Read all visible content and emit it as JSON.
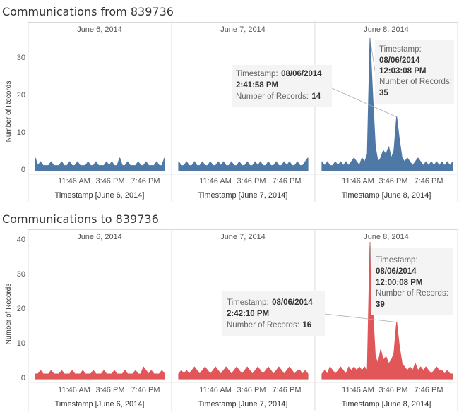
{
  "chart_data": [
    {
      "type": "line",
      "title": "Communications from 839736",
      "ylabel": "Number of Records",
      "ylim": [
        0,
        38
      ],
      "yticks": [
        0,
        10,
        20,
        30
      ],
      "color": "#4e79a7",
      "panels": [
        {
          "label": "June 6, 2014",
          "xlabel": "Timestamp [June 6, 2014]",
          "xticks": [
            "11:46 AM",
            "3:46 PM",
            "7:46 PM"
          ],
          "series": [
            3,
            1,
            2,
            1,
            1,
            1,
            2,
            1,
            1,
            1,
            2,
            1,
            1,
            2,
            1,
            1,
            2,
            1,
            1,
            1,
            2,
            1,
            1,
            2,
            1,
            1,
            1,
            2,
            1,
            2,
            1,
            1,
            3,
            1,
            1,
            2,
            1,
            1,
            1,
            2,
            1,
            1,
            2,
            1,
            1,
            1,
            2,
            1,
            1,
            3
          ]
        },
        {
          "label": "June 7, 2014",
          "xlabel": "Timestamp [June 7, 2014]",
          "xticks": [
            "11:46 AM",
            "3:46 PM",
            "7:46 PM"
          ],
          "series": [
            2,
            1,
            1,
            2,
            1,
            1,
            2,
            1,
            1,
            2,
            1,
            1,
            2,
            1,
            1,
            2,
            1,
            2,
            1,
            1,
            2,
            1,
            1,
            2,
            1,
            1,
            2,
            1,
            1,
            2,
            1,
            2,
            1,
            1,
            2,
            1,
            1,
            2,
            1,
            1,
            2,
            1,
            2,
            1,
            1,
            2,
            1,
            1,
            2,
            3
          ]
        },
        {
          "label": "June 8, 2014",
          "xlabel": "Timestamp [June 8, 2014]",
          "xticks": [
            "11:46 AM",
            "3:46 PM",
            "7:46 PM"
          ],
          "series": [
            2,
            1,
            2,
            1,
            1,
            2,
            1,
            2,
            1,
            2,
            1,
            2,
            3,
            2,
            1,
            3,
            2,
            4,
            35,
            20,
            6,
            2,
            3,
            5,
            4,
            6,
            3,
            5,
            14,
            8,
            3,
            2,
            3,
            2,
            1,
            2,
            3,
            2,
            1,
            2,
            1,
            2,
            1,
            2,
            1,
            2,
            1,
            2,
            1,
            2
          ]
        }
      ],
      "annotations": [
        {
          "panel": 2,
          "index": 18,
          "timestamp_label": "Timestamp:",
          "timestamp_date": "08/06/2014",
          "timestamp_time": "12:03:08 PM",
          "records_label": "Number of Records:",
          "records_value": "35"
        },
        {
          "panel": 2,
          "index": 28,
          "timestamp_label": "Timestamp:",
          "timestamp_date": "08/06/2014",
          "timestamp_time": "2:41:58 PM",
          "records_label": "Number of Records:",
          "records_value": "14"
        }
      ]
    },
    {
      "type": "line",
      "title": "Communications to 839736",
      "ylabel": "Number of Records",
      "ylim": [
        0,
        41
      ],
      "yticks": [
        0,
        10,
        20,
        30,
        40
      ],
      "color": "#e15759",
      "panels": [
        {
          "label": "June 6, 2014",
          "xlabel": "Timestamp [June 6, 2014]",
          "xticks": [
            "11:46 AM",
            "3:46 PM",
            "7:46 PM"
          ],
          "series": [
            1,
            1,
            2,
            1,
            1,
            1,
            2,
            1,
            1,
            1,
            2,
            1,
            1,
            1,
            2,
            1,
            1,
            1,
            2,
            1,
            1,
            1,
            2,
            1,
            1,
            1,
            2,
            1,
            1,
            1,
            2,
            1,
            1,
            1,
            2,
            1,
            1,
            1,
            2,
            1,
            1,
            3,
            2,
            1,
            2,
            1,
            1,
            1,
            2,
            1
          ]
        },
        {
          "label": "June 7, 2014",
          "xlabel": "Timestamp [June 7, 2014]",
          "xticks": [
            "11:46 AM",
            "3:46 PM",
            "7:46 PM"
          ],
          "series": [
            1,
            2,
            1,
            2,
            1,
            2,
            3,
            2,
            1,
            2,
            3,
            2,
            1,
            2,
            3,
            2,
            1,
            2,
            3,
            2,
            1,
            2,
            3,
            2,
            1,
            2,
            3,
            2,
            1,
            2,
            3,
            2,
            1,
            2,
            3,
            2,
            1,
            2,
            3,
            2,
            1,
            2,
            3,
            2,
            1,
            2,
            2,
            1,
            2,
            1
          ]
        },
        {
          "label": "June 8, 2014",
          "xlabel": "Timestamp [June 8, 2014]",
          "xticks": [
            "11:46 AM",
            "3:46 PM",
            "7:46 PM"
          ],
          "series": [
            1,
            2,
            1,
            3,
            2,
            1,
            2,
            3,
            2,
            1,
            3,
            2,
            3,
            2,
            3,
            2,
            3,
            2,
            39,
            20,
            6,
            4,
            8,
            5,
            6,
            4,
            5,
            7,
            16,
            9,
            4,
            3,
            2,
            3,
            2,
            4,
            2,
            3,
            2,
            3,
            2,
            1,
            2,
            3,
            2,
            2,
            1,
            2,
            1,
            1
          ]
        }
      ],
      "annotations": [
        {
          "panel": 2,
          "index": 18,
          "timestamp_label": "Timestamp:",
          "timestamp_date": "08/06/2014",
          "timestamp_time": "12:00:08 PM",
          "records_label": "Number of Records:",
          "records_value": "39"
        },
        {
          "panel": 2,
          "index": 28,
          "timestamp_label": "Timestamp:",
          "timestamp_date": "08/06/2014",
          "timestamp_time": "2:42:10 PM",
          "records_label": "Number of Records:",
          "records_value": "16"
        }
      ]
    }
  ]
}
